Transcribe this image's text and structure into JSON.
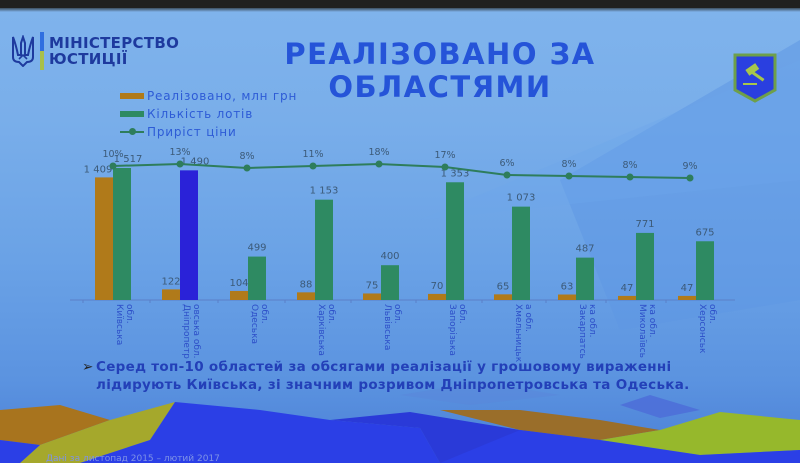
{
  "header": {
    "logo_line1": "МІНІСТЕРСТВО",
    "logo_line2": "ЮСТИЦІЇ",
    "title_line1": "РЕАЛІЗОВАНО ЗА",
    "title_line2": "ОБЛАСТЯМИ",
    "emblem_icon": "gavel-shield-icon"
  },
  "legend": {
    "items": [
      {
        "label": "Реалізовано, млн грн",
        "color": "#b07a1a",
        "type": "bar"
      },
      {
        "label": "Кількість лотів",
        "color": "#2e8a62",
        "type": "bar"
      },
      {
        "label": "Приріст ціни",
        "color": "#2e7d5c",
        "type": "line"
      }
    ]
  },
  "chart_data": {
    "type": "bar",
    "title": "РЕАЛІЗОВАНО ЗА ОБЛАСТЯМИ",
    "xlabel": "",
    "ylabel": "",
    "categories": [
      "Київська обл.",
      "Дніпропетровська обл.",
      "Одеська обл.",
      "Харківська обл.",
      "Львівська обл.",
      "Запорізька обл.",
      "Хмельницька обл.",
      "Закарпатська обл.",
      "Миколаївська обл.",
      "Херсонська обл."
    ],
    "series": [
      {
        "name": "Реалізовано, млн грн",
        "type": "bar",
        "color": "#b07a1a",
        "values": [
          1409,
          122,
          104,
          88,
          75,
          70,
          65,
          63,
          47,
          47
        ],
        "labels": [
          "1 409",
          "122",
          "104",
          "88",
          "75",
          "70",
          "65",
          "63",
          "47",
          "47"
        ]
      },
      {
        "name": "Кількість лотів",
        "type": "bar",
        "color": "#2e8a62",
        "values": [
          1517,
          1490,
          499,
          1153,
          400,
          1353,
          1073,
          487,
          771,
          675
        ],
        "labels": [
          "1 517",
          "1 490",
          "499",
          "1 153",
          "400",
          "1 353",
          "1 073",
          "487",
          "771",
          "675"
        ]
      },
      {
        "name": "Приріст ціни",
        "type": "line",
        "color": "#2e7d5c",
        "values": [
          10,
          13,
          8,
          11,
          18,
          17,
          6,
          8,
          8,
          9
        ],
        "labels": [
          "10%",
          "13%",
          "8%",
          "11%",
          "18%",
          "17%",
          "6%",
          "8%",
          "8%",
          "9%"
        ]
      }
    ],
    "highlight": {
      "category_index": 1,
      "series": "Кількість лотів",
      "color": "#2a22d8"
    },
    "grid": false,
    "legend_position": "top-left"
  },
  "axis_labels": [
    [
      "Київська",
      "обл."
    ],
    [
      "Дніпропетр",
      "овська обл."
    ],
    [
      "Одеська",
      "обл."
    ],
    [
      "Харківська",
      "обл."
    ],
    [
      "Львівська",
      "обл."
    ],
    [
      "Запорізька",
      "обл."
    ],
    [
      "Хмельницьк",
      "а обл."
    ],
    [
      "Закарпатсь",
      "ка обл."
    ],
    [
      "Миколаївсь",
      "ка обл."
    ],
    [
      "Херсонськ",
      "обл."
    ]
  ],
  "bullet": {
    "arrow": "➢",
    "text": "Серед топ-10 областей за обсягами реалізації у грошовому вираженні лідирують Київська, зі значним розривом Дніпропетровська та Одеська."
  },
  "footer": {
    "text": "Дані за листопад 2015 – лютий 2017"
  }
}
